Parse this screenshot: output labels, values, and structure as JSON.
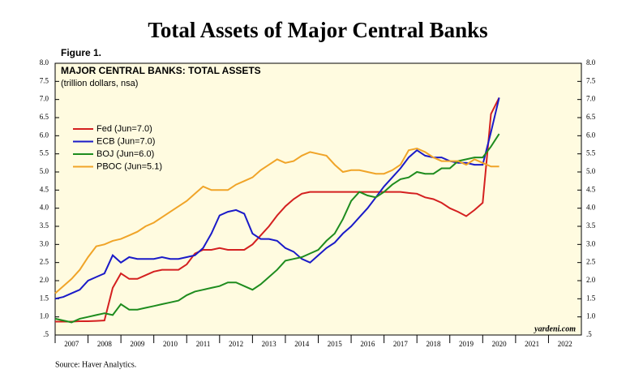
{
  "title": "Total Assets of Major Central Banks",
  "figure_label": "Figure 1.",
  "source": "Source: Haver Analytics.",
  "chart_data": {
    "type": "line",
    "title": "MAJOR CENTRAL BANKS: TOTAL ASSETS",
    "subtitle": "(trillion dollars, nsa)",
    "watermark": "yardeni.com",
    "x": [
      2007,
      2007.25,
      2007.5,
      2007.75,
      2008,
      2008.25,
      2008.5,
      2008.75,
      2009,
      2009.25,
      2009.5,
      2009.75,
      2010,
      2010.25,
      2010.5,
      2010.75,
      2011,
      2011.25,
      2011.5,
      2011.75,
      2012,
      2012.25,
      2012.5,
      2012.75,
      2013,
      2013.25,
      2013.5,
      2013.75,
      2014,
      2014.25,
      2014.5,
      2014.75,
      2015,
      2015.25,
      2015.5,
      2015.75,
      2016,
      2016.25,
      2016.5,
      2016.75,
      2017,
      2017.25,
      2017.5,
      2017.75,
      2018,
      2018.25,
      2018.5,
      2018.75,
      2019,
      2019.25,
      2019.5,
      2019.75,
      2020,
      2020.25,
      2020.5
    ],
    "series": [
      {
        "name": "Fed (Jun=7.0)",
        "color": "#d42020",
        "values": [
          0.87,
          0.87,
          0.87,
          0.88,
          0.88,
          0.89,
          0.9,
          1.8,
          2.2,
          2.05,
          2.05,
          2.15,
          2.25,
          2.3,
          2.3,
          2.3,
          2.45,
          2.75,
          2.85,
          2.85,
          2.9,
          2.85,
          2.85,
          2.85,
          3.0,
          3.25,
          3.5,
          3.8,
          4.05,
          4.25,
          4.4,
          4.45,
          4.45,
          4.45,
          4.45,
          4.45,
          4.45,
          4.45,
          4.45,
          4.45,
          4.45,
          4.45,
          4.45,
          4.42,
          4.4,
          4.3,
          4.25,
          4.15,
          4.0,
          3.9,
          3.78,
          3.95,
          4.15,
          6.6,
          7.05
        ]
      },
      {
        "name": "ECB (Jun=7.0)",
        "color": "#1a1ac8",
        "values": [
          1.5,
          1.55,
          1.65,
          1.75,
          2.0,
          2.1,
          2.2,
          2.7,
          2.5,
          2.65,
          2.6,
          2.6,
          2.6,
          2.65,
          2.6,
          2.6,
          2.65,
          2.7,
          2.9,
          3.3,
          3.8,
          3.9,
          3.95,
          3.85,
          3.3,
          3.15,
          3.15,
          3.1,
          2.9,
          2.8,
          2.6,
          2.5,
          2.7,
          2.9,
          3.05,
          3.3,
          3.5,
          3.75,
          4.0,
          4.3,
          4.6,
          4.85,
          5.1,
          5.4,
          5.6,
          5.45,
          5.4,
          5.4,
          5.3,
          5.25,
          5.25,
          5.2,
          5.2,
          6.1,
          7.05
        ]
      },
      {
        "name": "BOJ (Jun=6.0)",
        "color": "#1e8c1e",
        "values": [
          0.95,
          0.9,
          0.85,
          0.95,
          1.0,
          1.05,
          1.1,
          1.05,
          1.35,
          1.2,
          1.2,
          1.25,
          1.3,
          1.35,
          1.4,
          1.45,
          1.6,
          1.7,
          1.75,
          1.8,
          1.85,
          1.95,
          1.95,
          1.85,
          1.75,
          1.9,
          2.1,
          2.3,
          2.55,
          2.6,
          2.65,
          2.75,
          2.85,
          3.1,
          3.3,
          3.7,
          4.2,
          4.45,
          4.35,
          4.3,
          4.45,
          4.65,
          4.8,
          4.85,
          5.0,
          4.95,
          4.95,
          5.1,
          5.1,
          5.3,
          5.35,
          5.4,
          5.4,
          5.7,
          6.05
        ]
      },
      {
        "name": "PBOC (Jun=5.1)",
        "color": "#f0a428",
        "values": [
          1.65,
          1.85,
          2.05,
          2.3,
          2.65,
          2.95,
          3.0,
          3.1,
          3.15,
          3.25,
          3.35,
          3.5,
          3.6,
          3.75,
          3.9,
          4.05,
          4.2,
          4.4,
          4.6,
          4.5,
          4.5,
          4.5,
          4.65,
          4.75,
          4.85,
          5.05,
          5.2,
          5.35,
          5.25,
          5.3,
          5.45,
          5.55,
          5.5,
          5.45,
          5.2,
          5.0,
          5.05,
          5.05,
          5.0,
          4.95,
          4.95,
          5.05,
          5.2,
          5.6,
          5.65,
          5.55,
          5.4,
          5.3,
          5.3,
          5.3,
          5.2,
          5.35,
          5.25,
          5.15,
          5.15
        ]
      }
    ],
    "xlim": [
      2007,
      2023
    ],
    "xticks": [
      2007,
      2008,
      2009,
      2010,
      2011,
      2012,
      2013,
      2014,
      2015,
      2016,
      2017,
      2018,
      2019,
      2020,
      2021,
      2022
    ],
    "ylim": [
      0.5,
      8.0
    ],
    "yticks": [
      {
        "value": 0.5,
        "label": ".5"
      },
      {
        "value": 1,
        "label": "1.0"
      },
      1.5,
      {
        "value": 2,
        "label": "2.0"
      },
      2.5,
      {
        "value": 3,
        "label": "3.0"
      },
      3.5,
      {
        "value": 4,
        "label": "4.0"
      },
      4.5,
      {
        "value": 5,
        "label": "5.0"
      },
      5.5,
      {
        "value": 6,
        "label": "6.0"
      },
      6.5,
      {
        "value": 7,
        "label": "7.0"
      },
      7.5,
      {
        "value": 8,
        "label": "8.0"
      }
    ],
    "background": "#fffbe0"
  }
}
